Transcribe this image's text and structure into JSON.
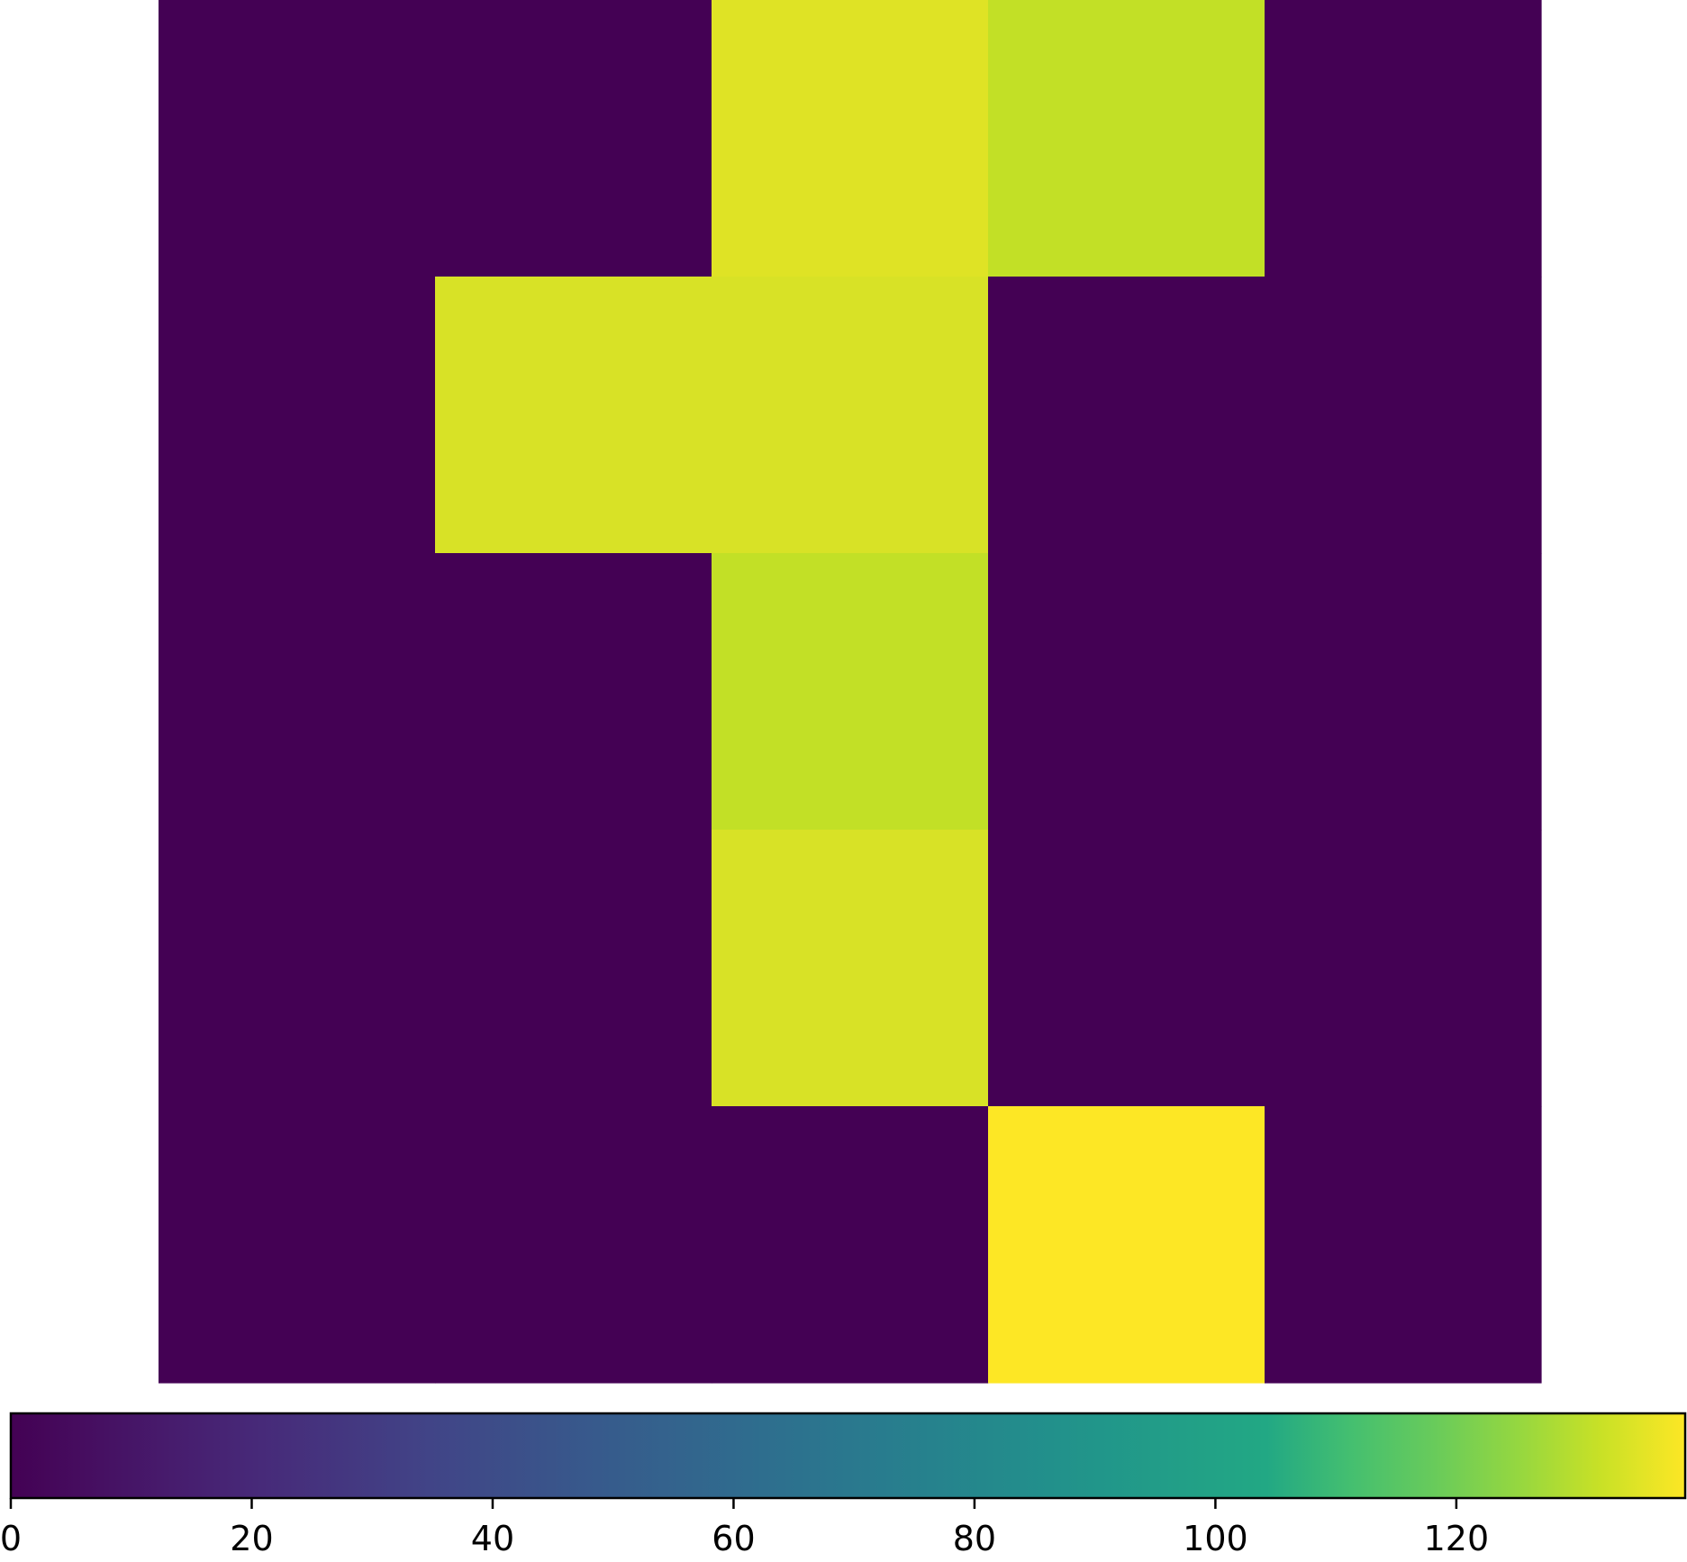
{
  "chart_data": {
    "type": "heatmap",
    "rows": 5,
    "cols": 5,
    "values": [
      [
        0,
        0,
        135,
        131,
        0
      ],
      [
        0,
        134,
        134,
        0,
        0
      ],
      [
        0,
        0,
        131,
        0,
        0
      ],
      [
        0,
        0,
        134,
        0,
        0
      ],
      [
        0,
        0,
        0,
        139,
        0
      ]
    ],
    "colormap": "viridis",
    "colorbar": {
      "orientation": "horizontal",
      "placement": "bottom",
      "range": [
        0,
        139
      ],
      "ticks": [
        0,
        20,
        40,
        60,
        80,
        100,
        120
      ],
      "tick_labels": [
        "0",
        "20",
        "40",
        "60",
        "80",
        "100",
        "120"
      ]
    },
    "axes_visible": false,
    "title": "",
    "xlabel": "",
    "ylabel": ""
  }
}
